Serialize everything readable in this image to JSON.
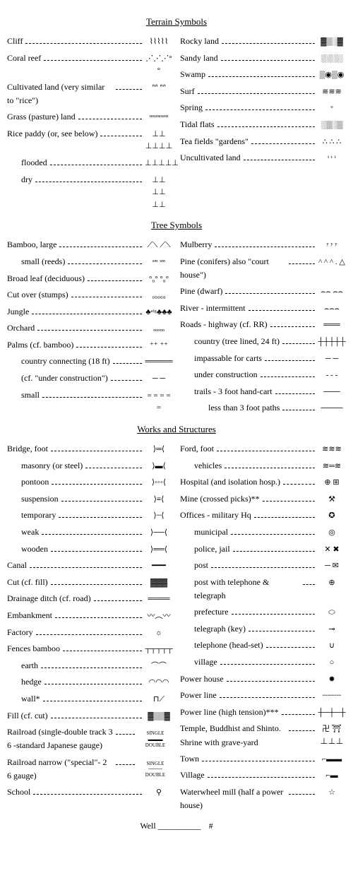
{
  "sections": {
    "terrain": "Terrain Symbols",
    "tree": "Tree Symbols",
    "works": "Works and Structures"
  },
  "terrain_left": [
    {
      "label": "Cliff",
      "sym": "⌇⌇⌇⌇⌇"
    },
    {
      "label": "Coral reef",
      "sym": "⋰⋰⋰°°"
    },
    {
      "label": "Cultivated land (very similar to \"rice\")",
      "sym": "ᐢᐢ ᐢᐢ",
      "wrap": true
    },
    {
      "label": "Grass (pasture) land",
      "sym": "ᵚᵚᵚᵚᵚ"
    },
    {
      "label": "Rice paddy (or, see below)",
      "sym": "⊥⊥ ⊥⊥⊥⊥"
    },
    {
      "label": "flooded",
      "sym": "⊥⊥⊥⊥⊥",
      "indent": 1
    },
    {
      "label": "dry",
      "sym": "⊥⊥ ⊥⊥ ⊥⊥",
      "indent": 1
    }
  ],
  "terrain_right": [
    {
      "label": "Rocky land",
      "sym": "▓▒░▓"
    },
    {
      "label": "Sandy land",
      "sym": "░░░░"
    },
    {
      "label": "Swamp",
      "sym": "▒◉▒◉"
    },
    {
      "label": "Surf",
      "sym": "≋≋≋"
    },
    {
      "label": "Spring",
      "sym": "ᵒ"
    },
    {
      "label": "Tidal flats",
      "sym": "░▒░▒"
    },
    {
      "label": "Tea fields \"gardens\"",
      "sym": "∴ ∴ ∴"
    },
    {
      "label": "Uncultivated land",
      "sym": "ᵗ ᵗ  ᵗ"
    }
  ],
  "tree_left": [
    {
      "label": "Bamboo, large",
      "sym": "⟋⟍ ⟋⟍"
    },
    {
      "label": "small (reeds)",
      "sym": "ˢᵐ ˢᵐ",
      "indent": 1
    },
    {
      "label": "Broad leaf (deciduous)",
      "sym": "°₀° °₀°"
    },
    {
      "label": "Cut over (stumps)",
      "sym": "₀₀₀₀₀"
    },
    {
      "label": "Jungle",
      "sym": "♣ᵃᵗᵍ♣♣♣"
    },
    {
      "label": "Orchard",
      "sym": "ₒₒₒₒₒ"
    },
    {
      "label": "Palms (cf. bamboo)",
      "sym": "⁺⁺ ⁺⁺"
    },
    {
      "label": "country connecting (18 ft)",
      "sym": "═════",
      "indent": 1,
      "wrap": true
    },
    {
      "label": "(cf. \"under construction\")",
      "sym": "─ ─",
      "indent": 1,
      "wrap": true
    },
    {
      "label": "small",
      "sym": "= = = = =",
      "indent": 1
    }
  ],
  "tree_right": [
    {
      "label": "Mulberry",
      "sym": "ʸ ʸ ʸ"
    },
    {
      "label": "Pine (conifers) also \"court house\")",
      "sym": "^ ^ ^ .  △",
      "wrap": true
    },
    {
      "label": "Pine (dwarf)",
      "sym": "⌢⌢ ⌢⌢"
    },
    {
      "label": "River - intermittent",
      "sym": "⌢⌢⌢"
    },
    {
      "label": "Roads - highway (cf. RR)",
      "sym": "═══"
    },
    {
      "label": "country (tree lined, 24 ft)",
      "sym": "┼┼┼┼┼",
      "indent": 1,
      "wrap": true
    },
    {
      "label": "impassable for carts",
      "sym": "─ ─",
      "indent": 1
    },
    {
      "label": "under construction",
      "sym": "- - -",
      "indent": 1
    },
    {
      "label": "trails - 3 foot hand-cart",
      "sym": "───",
      "indent": 1
    },
    {
      "label": "less than 3 foot paths",
      "sym": "────",
      "indent": 2,
      "wrap": true
    }
  ],
  "works_left": [
    {
      "label": "Bridge, foot",
      "sym": "⟩═⟨"
    },
    {
      "label": "masonry (or steel)",
      "sym": "⟩▬⟨",
      "indent": 1,
      "wrap": true
    },
    {
      "label": "pontoon",
      "sym": "⟩◦◦◦⟨",
      "indent": 1
    },
    {
      "label": "suspension",
      "sym": "⟩≡⟨",
      "indent": 1
    },
    {
      "label": "temporary",
      "sym": "⟩┄⟨",
      "indent": 1
    },
    {
      "label": "weak",
      "sym": "⟩──⟨",
      "indent": 1
    },
    {
      "label": "wooden",
      "sym": "⟩══⟨",
      "indent": 1
    },
    {
      "label": "Canal",
      "sym": "━━━"
    },
    {
      "label": "Cut (cf. fill)",
      "sym": "▓▓▓"
    },
    {
      "label": "Drainage ditch (cf. road)",
      "sym": "════"
    },
    {
      "label": "Embankment",
      "sym": "〰︵〰"
    },
    {
      "label": "Factory",
      "sym": "☼"
    },
    {
      "label": "Fences   bamboo",
      "sym": "┬┬┬┬┬"
    },
    {
      "label": "earth",
      "sym": "⌒⌒",
      "indent": 1
    },
    {
      "label": "hedge",
      "sym": "◠◠◠",
      "indent": 1
    },
    {
      "label": "wall*",
      "sym": "⊓⟋",
      "indent": 1
    },
    {
      "label": "Fill (cf. cut)",
      "sym": "▓▒▒▓"
    },
    {
      "label": "Railroad (single-double track 3 6 -standard Japanese gauge)",
      "sym": "SINGLE ▬▬▬ DOUBLE",
      "wrap": true,
      "stack": true
    },
    {
      "label": "Railroad narrow (\"special\"- 2 6 gauge)",
      "sym": "SINGLE ──── DOUBLE",
      "wrap": true,
      "stack": true
    },
    {
      "label": "School",
      "sym": "⚲"
    }
  ],
  "works_right": [
    {
      "label": "Ford, foot",
      "sym": "≋≋≋"
    },
    {
      "label": "vehicles",
      "sym": "≋═≋",
      "indent": 1
    },
    {
      "label": "Hospital (and isolation hosp.)",
      "sym": "⊕ ⊞",
      "wrap": true
    },
    {
      "label": "Mine (crossed picks)**",
      "sym": "⚒"
    },
    {
      "label": "Offices - military Hq",
      "sym": "✪"
    },
    {
      "label": "municipal",
      "sym": "◎",
      "indent": 1
    },
    {
      "label": "police, jail",
      "sym": "✕ ✖",
      "indent": 1
    },
    {
      "label": "post",
      "sym": "─ ✉",
      "indent": 1
    },
    {
      "label": "post with telephone & telegraph",
      "sym": "⊕",
      "indent": 1,
      "wrap": true
    },
    {
      "label": "prefecture",
      "sym": "⬭",
      "indent": 1
    },
    {
      "label": "telegraph (key)",
      "sym": "⊸",
      "indent": 1
    },
    {
      "label": "telephone (head-set)",
      "sym": "∪",
      "indent": 1
    },
    {
      "label": "village",
      "sym": "○",
      "indent": 1
    },
    {
      "label": "Power house",
      "sym": "✹"
    },
    {
      "label": "Power line",
      "sym": "┄┄┄┄"
    },
    {
      "label": "Power line (high tension)***",
      "sym": "┼─┼─┼",
      "wrap": true
    },
    {
      "label": "Temple, Buddhist and Shinto. Shrine with grave-yard",
      "sym": "卍 ⛩ ⊥⊥⊥",
      "wrap": true
    },
    {
      "label": "Town",
      "sym": "⌐▬▬"
    },
    {
      "label": "Village",
      "sym": "⌐▬"
    },
    {
      "label": "Waterwheel mill (half a power house)",
      "sym": "☆",
      "wrap": true
    }
  ],
  "well": {
    "label": "Well",
    "leader": "____________",
    "sym": "#"
  }
}
